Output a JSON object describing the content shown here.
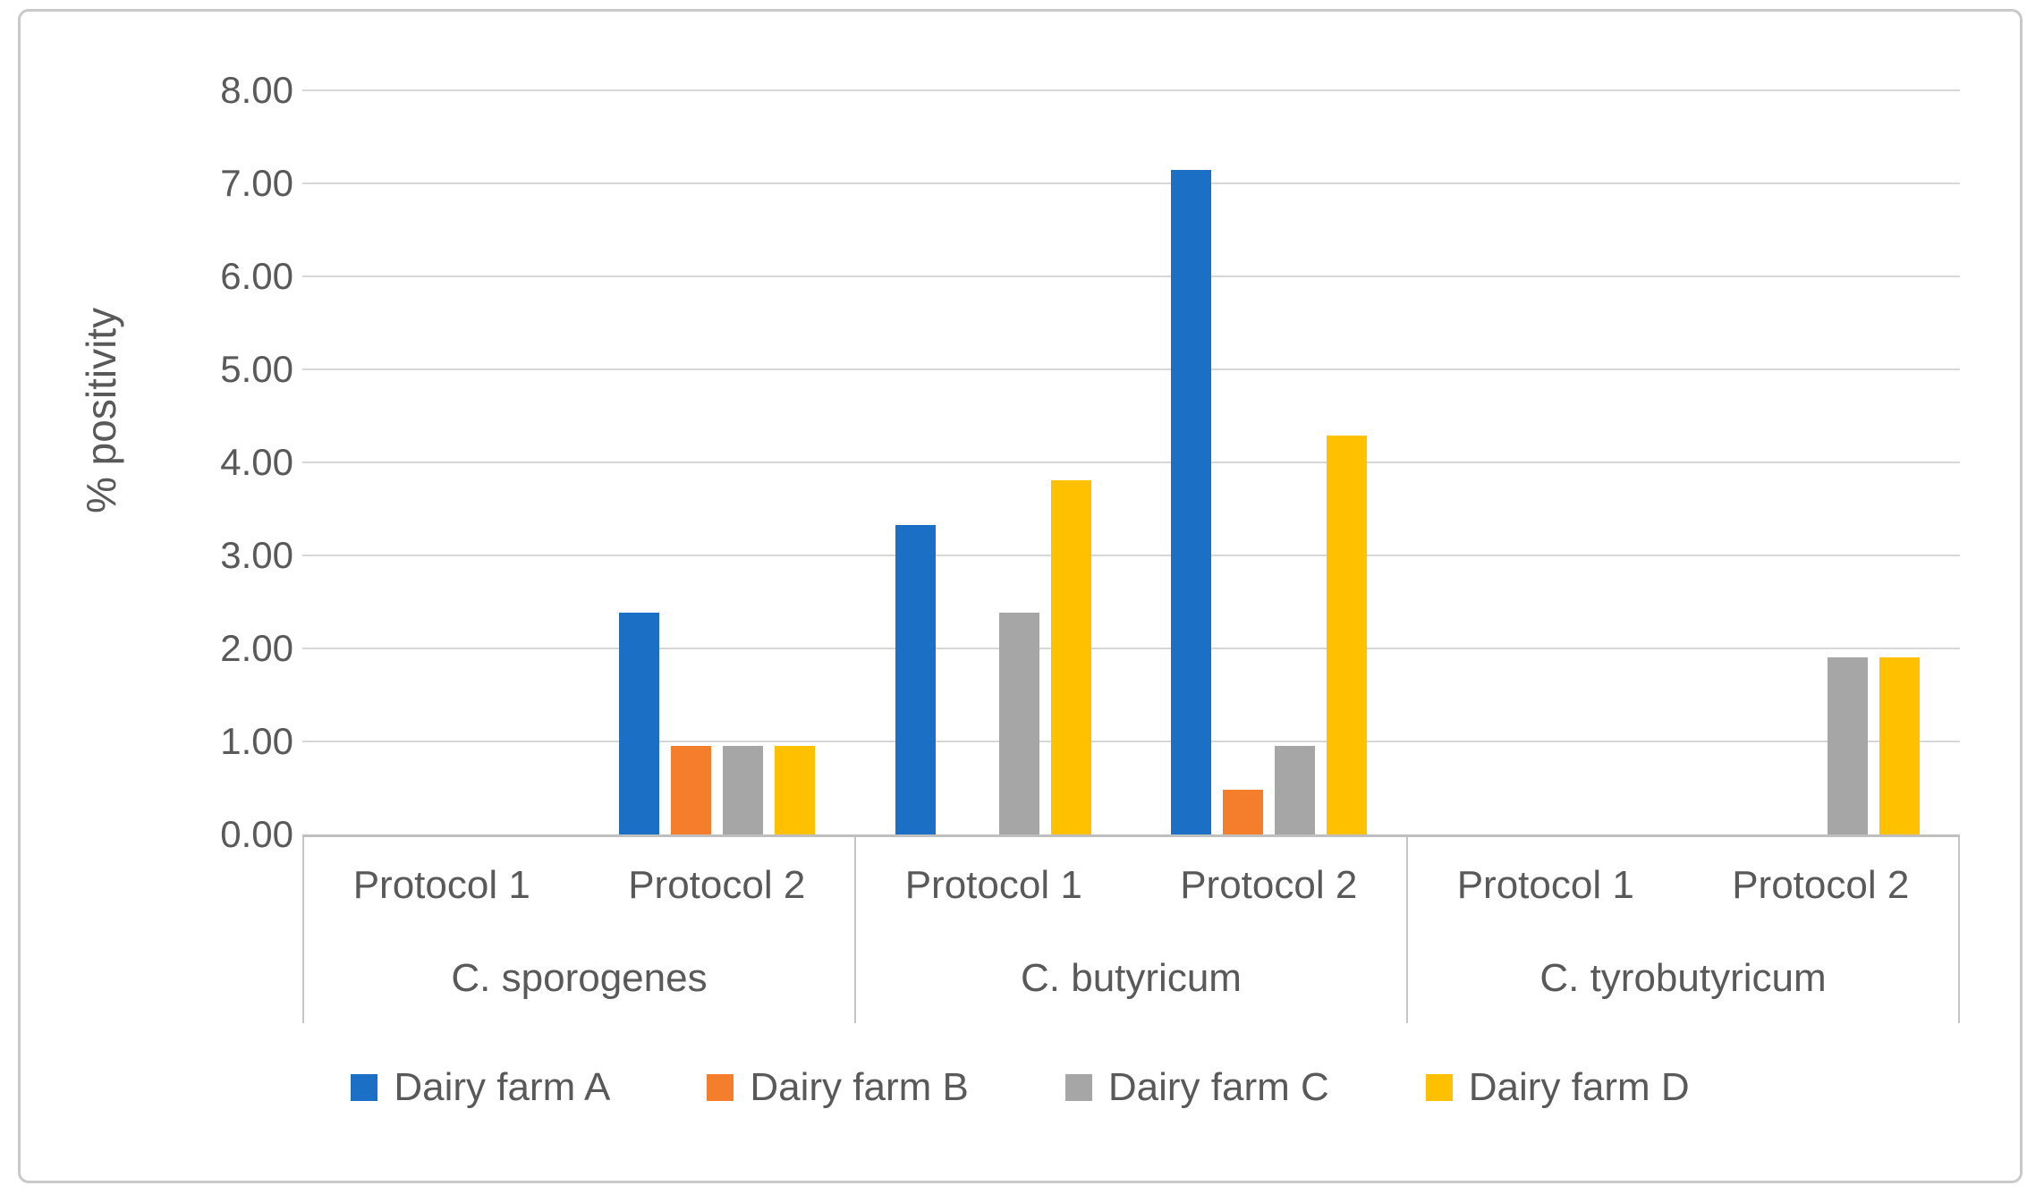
{
  "chart_data": {
    "type": "bar",
    "title": "",
    "ylabel": "% positivity",
    "xlabel": "",
    "ylim": [
      0,
      8
    ],
    "ytick_step": 1,
    "ytick_labels": [
      "8.00",
      "7.00",
      "6.00",
      "5.00",
      "4.00",
      "3.00",
      "2.00",
      "1.00",
      "0.00"
    ],
    "grid": true,
    "legend_position": "bottom",
    "series": [
      {
        "name": "Dairy farm A",
        "color": "#1b6fc5"
      },
      {
        "name": "Dairy farm B",
        "color": "#f57e2c"
      },
      {
        "name": "Dairy farm C",
        "color": "#a6a6a6"
      },
      {
        "name": "Dairy farm D",
        "color": "#ffc000"
      }
    ],
    "groups": [
      {
        "species": "C. sporogenes",
        "protocols": [
          {
            "label": "Protocol 1",
            "values": [
              0,
              0,
              0,
              0
            ]
          },
          {
            "label": "Protocol 2",
            "values": [
              2.38,
              0.95,
              0.95,
              0.95
            ]
          }
        ]
      },
      {
        "species": "C. butyricum",
        "protocols": [
          {
            "label": "Protocol 1",
            "values": [
              3.33,
              0,
              2.38,
              3.81
            ]
          },
          {
            "label": "Protocol 2",
            "values": [
              7.14,
              0.48,
              0.95,
              4.29
            ]
          }
        ]
      },
      {
        "species": "C. tyrobutyricum",
        "protocols": [
          {
            "label": "Protocol 1",
            "values": [
              0,
              0,
              0,
              0
            ]
          },
          {
            "label": "Protocol 2",
            "values": [
              0,
              0,
              1.9,
              1.9
            ]
          }
        ]
      }
    ]
  }
}
